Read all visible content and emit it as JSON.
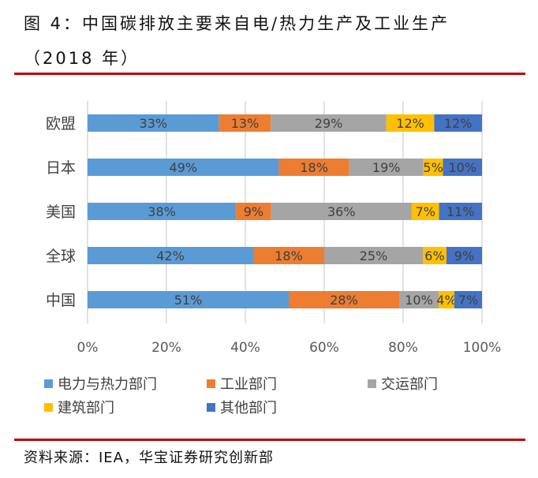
{
  "title_line1": "图 4：中国碳排放主要来自电/热力生产及工业生产",
  "title_line2": "（2018 年）",
  "source": "资料来源：IEA，华宝证券研究创新部",
  "chart_data": {
    "type": "bar",
    "orientation": "horizontal",
    "stacked": "percent",
    "categories": [
      "欧盟",
      "日本",
      "美国",
      "全球",
      "中国"
    ],
    "series": [
      {
        "name": "电力与热力部门",
        "color": "#5B9BD5",
        "values": [
          33,
          49,
          38,
          42,
          51
        ]
      },
      {
        "name": "工业部门",
        "color": "#ED7D31",
        "values": [
          13,
          18,
          9,
          18,
          28
        ]
      },
      {
        "name": "交运部门",
        "color": "#A5A5A5",
        "values": [
          29,
          19,
          36,
          25,
          10
        ]
      },
      {
        "name": "建筑部门",
        "color": "#FFC000",
        "values": [
          12,
          5,
          7,
          6,
          4
        ]
      },
      {
        "name": "其他部门",
        "color": "#4472C4",
        "values": [
          12,
          10,
          11,
          9,
          7
        ]
      }
    ],
    "xticks": [
      "0%",
      "20%",
      "40%",
      "60%",
      "80%",
      "100%"
    ],
    "xlim": [
      0,
      100
    ],
    "grid": "vertical",
    "legend": "bottom",
    "data_labels": true
  }
}
